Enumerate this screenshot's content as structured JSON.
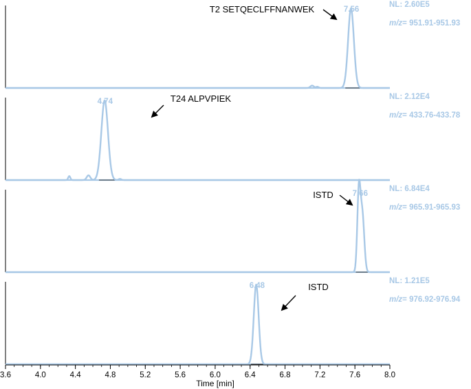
{
  "chart_data": {
    "type": "line",
    "xlabel": "Time [min]",
    "xlim": [
      3.6,
      8.0
    ],
    "x_ticks": [
      "3.6",
      "4.0",
      "4.4",
      "4.8",
      "5.2",
      "5.6",
      "6.0",
      "6.4",
      "6.8",
      "7.2",
      "7.6",
      "8.0"
    ],
    "x_tick_values": [
      3.6,
      4.0,
      4.4,
      4.8,
      5.2,
      5.6,
      6.0,
      6.4,
      6.8,
      7.2,
      7.6,
      8.0
    ],
    "colors": {
      "trace": "#a8c8e6",
      "info": "#a8c8e6",
      "axis": "#000000",
      "annotation": "#000000"
    },
    "panels": [
      {
        "annotation": "T2 SETQECLFFNANWEK",
        "nl_label": "NL: 2.60E5",
        "mz_prefix": "m/z",
        "mz_range": "= 951.91-951.93",
        "apex_label": "7.56",
        "apex_rt": 7.56,
        "peaks": [
          {
            "rt": 7.555,
            "height": 1.0,
            "sigma": 0.033
          },
          {
            "rt": 7.11,
            "height": 0.03,
            "sigma": 0.02
          },
          {
            "rt": 7.17,
            "height": 0.015,
            "sigma": 0.015
          }
        ],
        "integration": [
          7.49,
          7.66
        ],
        "arrow_dir": "down-right"
      },
      {
        "annotation": "T24 ALPVPIEK",
        "nl_label": "NL: 2.12E4",
        "mz_prefix": "m/z",
        "mz_range": "= 433.76-433.78",
        "apex_label": "4.74",
        "apex_rt": 4.74,
        "peaks": [
          {
            "rt": 4.735,
            "height": 1.0,
            "sigma": 0.038
          },
          {
            "rt": 4.55,
            "height": 0.06,
            "sigma": 0.02
          },
          {
            "rt": 4.33,
            "height": 0.05,
            "sigma": 0.012
          },
          {
            "rt": 4.91,
            "height": 0.015,
            "sigma": 0.015
          }
        ],
        "integration": [
          4.67,
          4.87
        ],
        "arrow_dir": "down-left"
      },
      {
        "annotation": "ISTD",
        "nl_label": "NL: 6.84E4",
        "mz_prefix": "m/z",
        "mz_range": "= 965.91-965.93",
        "apex_label": "7.66",
        "apex_rt": 7.66,
        "peaks": [
          {
            "rt": 7.645,
            "height": 1.0,
            "sigma": 0.018
          },
          {
            "rt": 7.685,
            "height": 0.72,
            "sigma": 0.022
          }
        ],
        "integration": [
          7.61,
          7.76
        ],
        "arrow_dir": "down-right"
      },
      {
        "annotation": "ISTD",
        "nl_label": "NL: 1.21E5",
        "mz_prefix": "m/z",
        "mz_range": "= 976.92-976.94",
        "apex_label": "6.48",
        "apex_rt": 6.48,
        "peaks": [
          {
            "rt": 6.47,
            "height": 1.0,
            "sigma": 0.028
          }
        ],
        "integration": [
          6.41,
          6.55
        ],
        "arrow_dir": "down-left"
      }
    ]
  }
}
